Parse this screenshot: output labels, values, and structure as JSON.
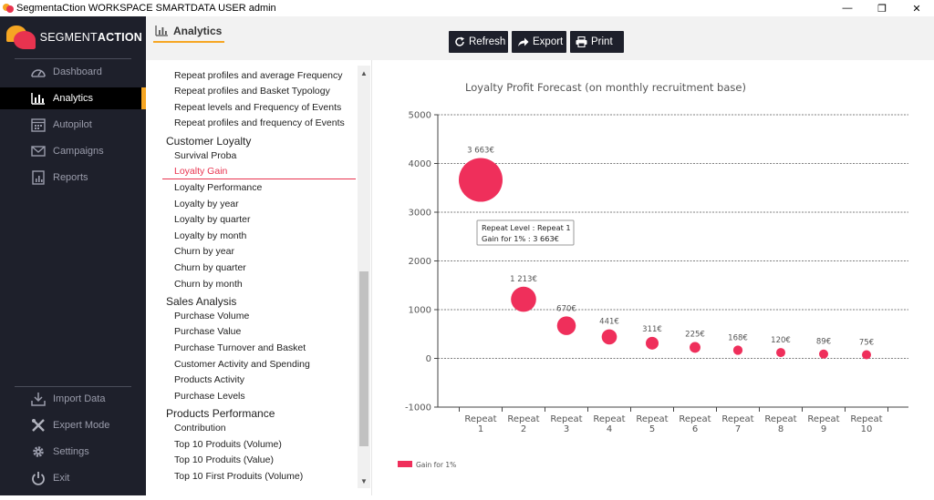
{
  "window": {
    "title": "SegmentaCtion WORKSPACE SMARTDATA USER admin",
    "min": "—",
    "max": "❐",
    "close": "✕"
  },
  "brand": {
    "part1": "SEGMENT",
    "part2": "ACTION"
  },
  "sidebar": {
    "items": [
      {
        "label": "Dashboard",
        "icon": "speedometer-icon"
      },
      {
        "label": "Analytics",
        "icon": "bar-chart-icon"
      },
      {
        "label": "Autopilot",
        "icon": "calendar-icon"
      },
      {
        "label": "Campaigns",
        "icon": "envelope-icon"
      },
      {
        "label": "Reports",
        "icon": "report-icon"
      }
    ],
    "bottom": [
      {
        "label": "Import Data",
        "icon": "download-icon"
      },
      {
        "label": "Expert Mode",
        "icon": "tools-icon"
      },
      {
        "label": "Settings",
        "icon": "gear-icon"
      },
      {
        "label": "Exit",
        "icon": "power-icon"
      }
    ],
    "colors": {
      "bg": "#1e202b",
      "accent": "#f6a623"
    }
  },
  "header": {
    "tab_title": "Analytics"
  },
  "toolbar": {
    "refresh": "Refresh",
    "export": "Export",
    "print": "Print"
  },
  "list": {
    "items_top": [
      "Repeat profiles and average Frequency",
      "Repeat profiles and Basket Typology",
      "Repeat levels and Frequency of Events",
      "Repeat profiles and frequency of Events"
    ],
    "group_loyalty": "Customer Loyalty",
    "items_loyalty": [
      "Survival Proba",
      "Loyalty Gain",
      "Loyalty Performance",
      "Loyalty by year",
      "Loyalty by quarter",
      "Loyalty by month",
      "Churn by year",
      "Churn by quarter",
      "Churn by month"
    ],
    "group_sales": "Sales Analysis",
    "items_sales": [
      "Purchase Volume",
      "Purchase Value",
      "Purchase Turnover and Basket",
      "Customer Activity and Spending",
      "Products Activity",
      "Purchase Levels"
    ],
    "group_products": "Products Performance",
    "items_products": [
      "Contribution",
      "Top 10 Produits (Volume)",
      "Top 10 Produits (Value)",
      "Top 10 First Produits (Volume)"
    ],
    "active_color": "#e8334f"
  },
  "chart_data": {
    "type": "scatter",
    "title": "Loyalty Profit Forecast (on monthly recruitment base)",
    "categories": [
      "Repeat 1",
      "Repeat 2",
      "Repeat 3",
      "Repeat 4",
      "Repeat 5",
      "Repeat 6",
      "Repeat 7",
      "Repeat 8",
      "Repeat 9",
      "Repeat 10"
    ],
    "category_lines": [
      [
        "Repeat",
        "1"
      ],
      [
        "Repeat",
        "2"
      ],
      [
        "Repeat",
        "3"
      ],
      [
        "Repeat",
        "4"
      ],
      [
        "Repeat",
        "5"
      ],
      [
        "Repeat",
        "6"
      ],
      [
        "Repeat",
        "7"
      ],
      [
        "Repeat",
        "8"
      ],
      [
        "Repeat",
        "9"
      ],
      [
        "Repeat",
        "10"
      ]
    ],
    "series": [
      {
        "name": "Gain for 1%",
        "values": [
          3663,
          1213,
          670,
          441,
          311,
          225,
          168,
          120,
          89,
          75
        ],
        "labels": [
          "3 663€",
          "1 213€",
          "670€",
          "441€",
          "311€",
          "225€",
          "168€",
          "120€",
          "89€",
          "75€"
        ],
        "color": "#ef2f5b"
      }
    ],
    "ylim": [
      -1000,
      5000
    ],
    "yticks": [
      -1000,
      0,
      1000,
      2000,
      3000,
      4000,
      5000
    ],
    "grid": true,
    "legend": "bottom-left",
    "tooltip": {
      "line1": "Repeat Level : Repeat 1",
      "line2": "Gain for 1% : 3 663€"
    }
  }
}
